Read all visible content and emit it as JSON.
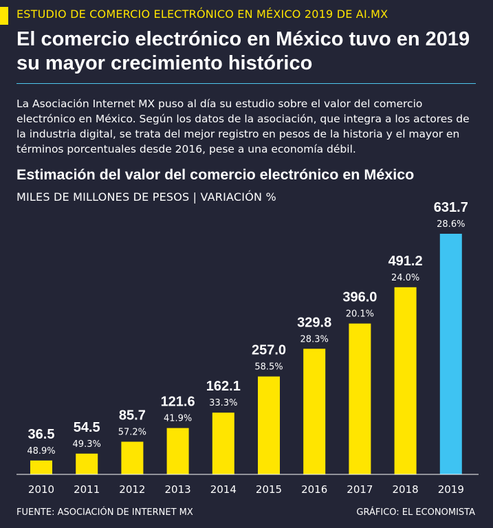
{
  "kicker": "ESTUDIO DE COMERCIO ELECTRÓNICO EN MÉXICO 2019 DE AI.MX",
  "headline": "El comercio electrónico en México tuvo en 2019 su mayor crecimiento histórico",
  "intro": "La Asociación Internet MX puso al día su estudio sobre el valor del comercio electrónico en México. Según los datos de la asociación, que integra a los actores de la industria digital, se trata del mejor registro en pesos de la historia y el mayor en términos porcentuales desde 2016, pese a una economía débil.",
  "footer": {
    "source": "FUENTE: ASOCIACIÓN DE INTERNET MX",
    "credit": "GRÁFICO: EL ECONOMISTA"
  },
  "colors": {
    "background": "#232536",
    "bar": "#ffe500",
    "bar_highlight": "#3ec3f2",
    "accent": "#ffe500",
    "rule": "#4fc8ee"
  },
  "chart_data": {
    "type": "bar",
    "title": "Estimación del valor del comercio electrónico en México",
    "subtitle": "MILES DE MILLONES DE PESOS | VARIACIÓN %",
    "categories": [
      "2010",
      "2011",
      "2012",
      "2013",
      "2014",
      "2015",
      "2016",
      "2017",
      "2018",
      "2019"
    ],
    "values": [
      36.5,
      54.5,
      85.7,
      121.6,
      162.1,
      257.0,
      329.8,
      396.0,
      491.2,
      631.7
    ],
    "value_labels": [
      "36.5",
      "54.5",
      "85.7",
      "121.6",
      "162.1",
      "257.0",
      "329.8",
      "396.0",
      "491.2",
      "631.7"
    ],
    "change_labels": [
      "48.9%",
      "49.3%",
      "57.2%",
      "41.9%",
      "33.3%",
      "58.5%",
      "28.3%",
      "20.1%",
      "24.0%",
      "28.6%"
    ],
    "highlight": "2019",
    "ylim": [
      0,
      631.7
    ],
    "grid": false
  }
}
